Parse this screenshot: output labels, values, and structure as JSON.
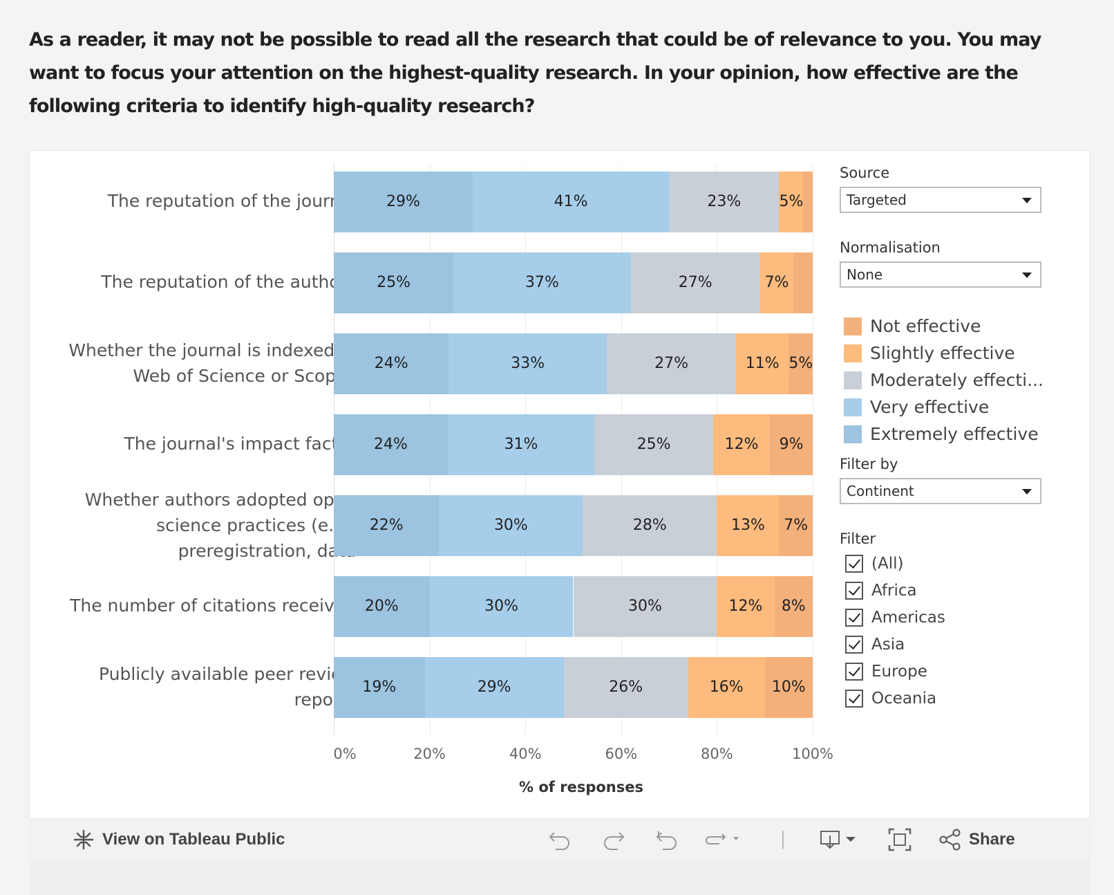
{
  "question": "As a reader, it may not be possible to read all the research that could be of relevance to you. You may want to focus your attention on the highest-quality research. In your opinion, how effective are the following criteria to identify high-quality research?",
  "controls": {
    "source": {
      "title": "Source",
      "value": "Targeted"
    },
    "normalisation": {
      "title": "Normalisation",
      "value": "None"
    },
    "filter_by": {
      "title": "Filter by",
      "value": "Continent"
    },
    "filter": {
      "title": "Filter",
      "options": [
        "(All)",
        "Africa",
        "Americas",
        "Asia",
        "Europe",
        "Oceania"
      ],
      "checked": [
        true,
        true,
        true,
        true,
        true,
        true
      ]
    }
  },
  "legend": [
    {
      "label": "Not effective",
      "color": "#f4b07a"
    },
    {
      "label": "Slightly effective",
      "color": "#fdbb7d"
    },
    {
      "label": "Moderately effecti...",
      "color": "#c9cfd7"
    },
    {
      "label": "Very effective",
      "color": "#a6cdea"
    },
    {
      "label": "Extremely effective",
      "color": "#9cc3e0"
    }
  ],
  "chart_data": {
    "type": "bar",
    "orientation": "horizontal",
    "stacked": true,
    "categories": [
      [
        "The reputation of the journal"
      ],
      [
        "The reputation of the authors"
      ],
      [
        "Whether the journal is indexed in",
        "Web of Science or Scopus"
      ],
      [
        "The journal's impact factor"
      ],
      [
        "Whether authors adopted open",
        "science practices (e.g.,",
        "preregistration, data"
      ],
      [
        "The number of citations received"
      ],
      [
        "Publicly available peer review",
        "reports"
      ]
    ],
    "series": [
      {
        "name": "Extremely effective",
        "color": "#9cc3e0",
        "values": [
          29,
          25,
          24,
          24,
          22,
          20,
          19
        ],
        "labels": [
          "29%",
          "25%",
          "24%",
          "24%",
          "22%",
          "20%",
          "19%"
        ]
      },
      {
        "name": "Very effective",
        "color": "#a6cdea",
        "values": [
          41,
          37,
          33,
          31,
          30,
          30,
          29
        ],
        "labels": [
          "41%",
          "37%",
          "33%",
          "31%",
          "30%",
          "30%",
          "29%"
        ]
      },
      {
        "name": "Moderately effecti...",
        "color": "#c9cfd7",
        "values": [
          23,
          27,
          27,
          25,
          28,
          30,
          26
        ],
        "labels": [
          "23%",
          "27%",
          "27%",
          "25%",
          "28%",
          "30%",
          "26%"
        ]
      },
      {
        "name": "Slightly effective",
        "color": "#fdbb7d",
        "values": [
          5,
          7,
          11,
          12,
          13,
          12,
          16
        ],
        "labels": [
          "5%",
          "7%",
          "11%",
          "12%",
          "13%",
          "12%",
          "16%"
        ]
      },
      {
        "name": "Not effective",
        "color": "#f4b07a",
        "values": [
          2,
          4,
          5,
          9,
          7,
          8,
          10
        ],
        "labels": [
          "",
          "",
          "5%",
          "9%",
          "7%",
          "8%",
          "10%"
        ]
      }
    ],
    "xlim": [
      0,
      100
    ],
    "xticks": [
      "0%",
      "20%",
      "40%",
      "60%",
      "80%",
      "100%"
    ],
    "xlabel": "% of responses",
    "ylabel": "",
    "grid": true
  },
  "toolbar": {
    "view_label": "View on Tableau Public",
    "share_label": "Share"
  }
}
